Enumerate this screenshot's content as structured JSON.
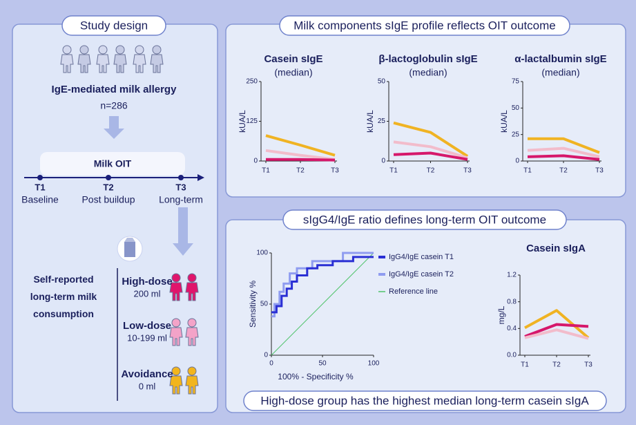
{
  "study_design": {
    "title": "Study design",
    "population": "IgE-mediated milk allergy",
    "n": "n=286",
    "intervention": "Milk OIT",
    "timepoints": [
      {
        "label": "T1",
        "desc": "Baseline"
      },
      {
        "label": "T2",
        "desc": "Post buildup"
      },
      {
        "label": "T3",
        "desc": "Long-term"
      }
    ],
    "consumption_label": "Self-reported long-term milk consumption",
    "groups": [
      {
        "name": "High-dose",
        "dose": "200 ml"
      },
      {
        "name": "Low-dose",
        "dose": "10-199 ml"
      },
      {
        "name": "Avoidance",
        "dose": "0 ml"
      }
    ]
  },
  "panels": {
    "sige": "Milk components sIgE profile reflects OIT outcome",
    "ratio": "sIgG4/IgE ratio defines long-term OIT outcome",
    "siga": "High-dose group has the highest median long-term casein sIgA"
  },
  "chart_data": [
    {
      "type": "line",
      "title": "Casein sIgE",
      "subtitle": "(median)",
      "y_label": "kUA/L",
      "categories": [
        "T1",
        "T2",
        "T3"
      ],
      "ylim": [
        0,
        250
      ],
      "yticks": [
        0,
        125,
        250
      ],
      "series": [
        {
          "color": "#f0b323",
          "values": [
            80,
            50,
            18
          ]
        },
        {
          "color": "#f2bccb",
          "values": [
            33,
            18,
            5
          ]
        },
        {
          "color": "#d6186b",
          "values": [
            5,
            5,
            3
          ]
        }
      ]
    },
    {
      "type": "line",
      "title": "β-lactoglobulin sIgE",
      "subtitle": "(median)",
      "y_label": "kUA/L",
      "categories": [
        "T1",
        "T2",
        "T3"
      ],
      "ylim": [
        0,
        50
      ],
      "yticks": [
        0,
        25,
        50
      ],
      "series": [
        {
          "color": "#f0b323",
          "values": [
            24,
            18,
            3
          ]
        },
        {
          "color": "#f2bccb",
          "values": [
            12,
            9,
            2
          ]
        },
        {
          "color": "#d6186b",
          "values": [
            4,
            5,
            1
          ]
        }
      ]
    },
    {
      "type": "line",
      "title": "α-lactalbumin sIgE",
      "subtitle": "(median)",
      "y_label": "kUA/L",
      "categories": [
        "T1",
        "T2",
        "T3"
      ],
      "ylim": [
        0,
        75
      ],
      "yticks": [
        0,
        25,
        50,
        75
      ],
      "series": [
        {
          "color": "#f0b323",
          "values": [
            21,
            21,
            8
          ]
        },
        {
          "color": "#f2bccb",
          "values": [
            10,
            12,
            4
          ]
        },
        {
          "color": "#d6186b",
          "values": [
            4,
            5,
            1.5
          ]
        }
      ]
    },
    {
      "type": "roc",
      "x_label": "100% - Specificity %",
      "y_label": "Sensitivity %",
      "xlim": [
        0,
        100
      ],
      "ylim": [
        0,
        100
      ],
      "xticks": [
        0,
        50,
        100
      ],
      "yticks": [
        0,
        50,
        100
      ],
      "series": [
        {
          "name": "IgG4/IgE casein T1",
          "color": "#2a2fd4",
          "x": [
            0,
            5,
            5,
            10,
            10,
            15,
            15,
            20,
            20,
            25,
            25,
            35,
            35,
            45,
            45,
            60,
            60,
            80,
            80,
            100
          ],
          "values": [
            42,
            42,
            48,
            48,
            58,
            58,
            65,
            65,
            72,
            72,
            78,
            78,
            85,
            85,
            88,
            88,
            92,
            92,
            96,
            96
          ]
        },
        {
          "name": "IgG4/IgE casein T2",
          "color": "#8f9cf0",
          "x": [
            0,
            3,
            3,
            8,
            8,
            12,
            12,
            18,
            18,
            25,
            25,
            40,
            40,
            70,
            70,
            100
          ],
          "values": [
            38,
            38,
            50,
            50,
            62,
            62,
            70,
            70,
            80,
            80,
            85,
            85,
            92,
            92,
            100,
            100
          ]
        },
        {
          "name": "Reference line",
          "color": "#4fc36a",
          "x": [
            0,
            100
          ],
          "values": [
            0,
            100
          ]
        }
      ]
    },
    {
      "type": "line",
      "title": "Casein sIgA",
      "y_label": "mg/L",
      "categories": [
        "T1",
        "T2",
        "T3"
      ],
      "ylim": [
        0,
        1.2
      ],
      "yticks": [
        {
          "value": 0,
          "label": "0.0"
        },
        0.4,
        0.8,
        1.2
      ],
      "series": [
        {
          "color": "#f0b323",
          "values": [
            0.41,
            0.67,
            0.26
          ]
        },
        {
          "color": "#d6186b",
          "values": [
            0.28,
            0.46,
            0.43
          ]
        },
        {
          "color": "#f2bccb",
          "values": [
            0.26,
            0.38,
            0.25
          ]
        }
      ]
    }
  ]
}
